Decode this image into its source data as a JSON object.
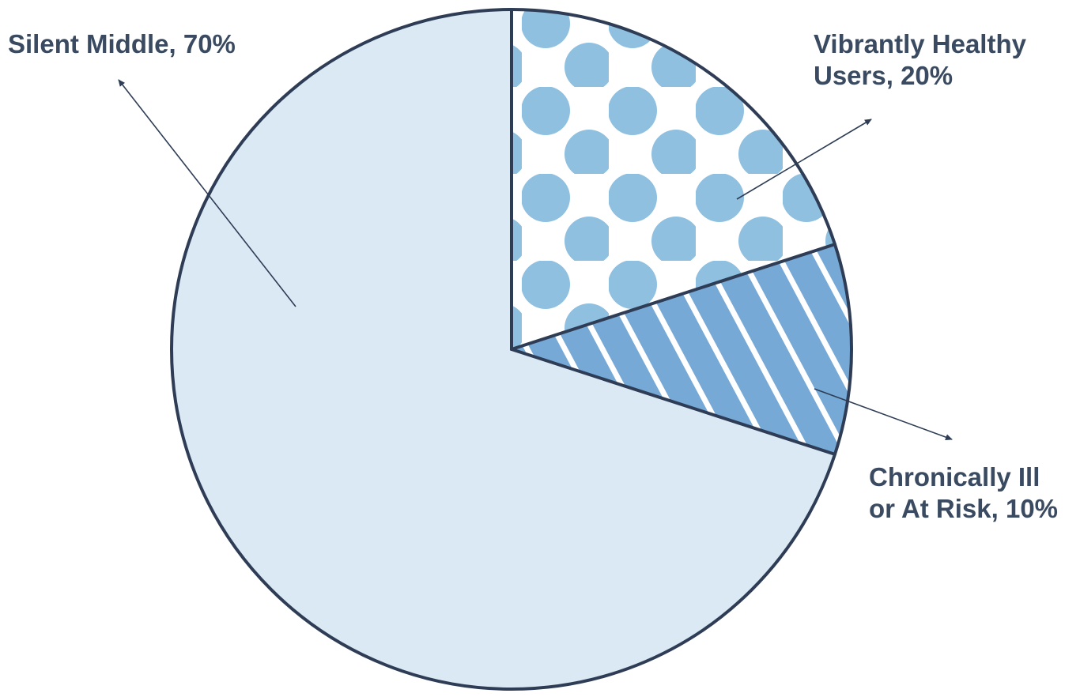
{
  "chart_data": {
    "type": "pie",
    "start_angle_deg": 0,
    "direction": "clockwise",
    "slices": [
      {
        "key": "vibrant",
        "label_lines": [
          "Vibrantly Healthy",
          "Users, 20%"
        ],
        "value": 20,
        "fill": "dots",
        "color": "#8fc0e0",
        "base_color": "#ffffff"
      },
      {
        "key": "chronic",
        "label_lines": [
          "Chronically Ill",
          "or At Risk, 10%"
        ],
        "value": 10,
        "fill": "stripes",
        "color": "#76a9d6",
        "stripe_color": "#ffffff"
      },
      {
        "key": "silent",
        "label_lines": [
          "Silent Middle, 70%"
        ],
        "value": 70,
        "fill": "solid",
        "color": "#dbe9f4"
      }
    ],
    "outline_color": "#2e3d55",
    "label_color": "#3a4a60"
  }
}
